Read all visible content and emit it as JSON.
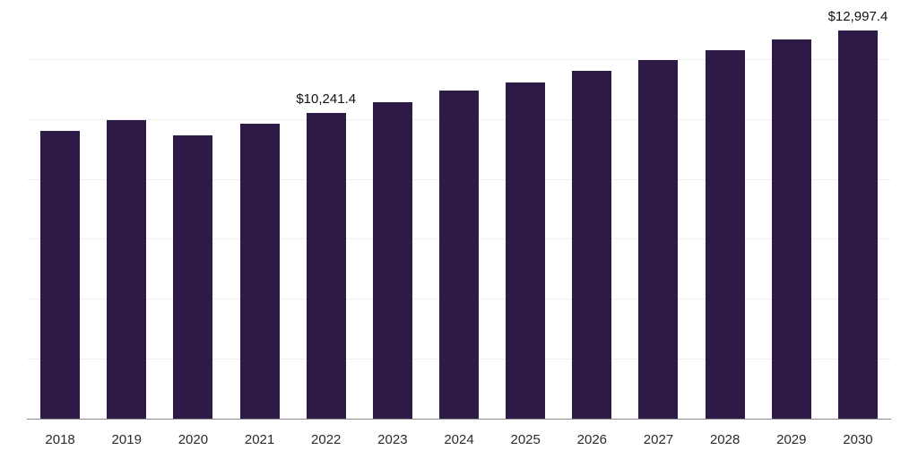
{
  "chart_data": {
    "type": "bar",
    "categories": [
      "2018",
      "2019",
      "2020",
      "2021",
      "2022",
      "2023",
      "2024",
      "2025",
      "2026",
      "2027",
      "2028",
      "2029",
      "2030"
    ],
    "values": [
      9630,
      9990,
      9480,
      9870,
      10241.4,
      10590,
      10980,
      11250,
      11640,
      12000,
      12330,
      12690,
      12997.4
    ],
    "data_labels": {
      "2022": "$10,241.4",
      "2030": "$12,997.4"
    },
    "ylim": [
      0,
      14000
    ],
    "grid": "horizontal",
    "grid_step": 2000,
    "legend": "none",
    "bar_color": "#2e1a47",
    "gridline_color": "#efefef",
    "axis_line_color": "#8c8c8c",
    "tick_label_color": "#2b2b2b",
    "data_label_color": "#111111"
  }
}
